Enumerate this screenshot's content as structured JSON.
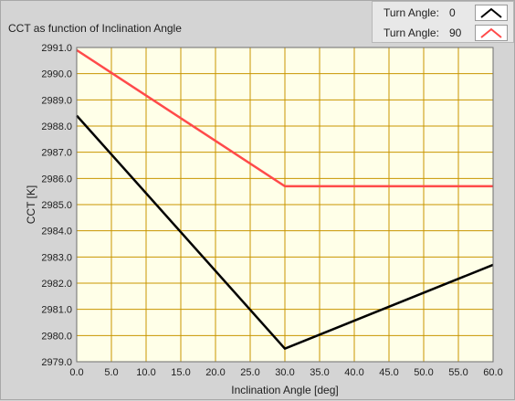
{
  "title": "CCT as function of Inclination Angle",
  "legend": [
    {
      "label": "Turn Angle:",
      "value": "0",
      "color": "#000000"
    },
    {
      "label": "Turn Angle:",
      "value": "90",
      "color": "#ff4a4a"
    }
  ],
  "chart_data": {
    "type": "line",
    "title": "CCT as function of Inclination Angle",
    "xlabel": "Inclination Angle [deg]",
    "ylabel": "CCT [K]",
    "xlim": [
      0,
      60
    ],
    "ylim": [
      2979.0,
      2991.0
    ],
    "xticks": [
      "0.0",
      "5.0",
      "10.0",
      "15.0",
      "20.0",
      "25.0",
      "30.0",
      "35.0",
      "40.0",
      "45.0",
      "50.0",
      "55.0",
      "60.0"
    ],
    "yticks": [
      "2979.0",
      "2980.0",
      "2981.0",
      "2982.0",
      "2983.0",
      "2984.0",
      "2985.0",
      "2986.0",
      "2987.0",
      "2988.0",
      "2989.0",
      "2990.0",
      "2991.0"
    ],
    "grid": true,
    "legend_position": "top-right",
    "colors": {
      "plot_bg": "#ffffe8",
      "grid": "#c89400",
      "frame": "#6e6e6e"
    },
    "series": [
      {
        "name": "Turn Angle: 0",
        "color": "#000000",
        "points": [
          [
            0,
            2988.4
          ],
          [
            30,
            2979.5
          ],
          [
            60,
            2982.7
          ]
        ]
      },
      {
        "name": "Turn Angle: 90",
        "color": "#ff4a4a",
        "points": [
          [
            0,
            2990.9
          ],
          [
            30,
            2985.7
          ],
          [
            60,
            2985.7
          ]
        ]
      }
    ]
  }
}
